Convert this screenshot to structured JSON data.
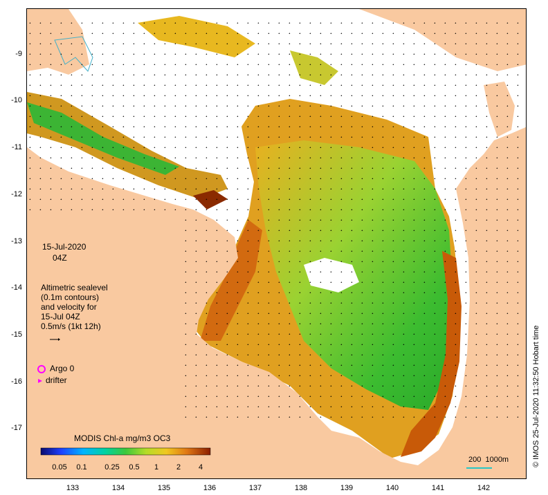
{
  "date_block": {
    "date": "15-Jul-2020",
    "time": "04Z"
  },
  "legend": {
    "title_lines": [
      "Altimetric sealevel",
      "(0.1m contours)",
      "and velocity for",
      "15-Jul 04Z",
      "0.5m/s (1kt 12h)"
    ],
    "argo_label": "Argo 0",
    "drifter_label": "drifter"
  },
  "colorbar": {
    "title": "MODIS Chl-a mg/m3 OC3",
    "tick_labels": [
      "0.05",
      "0.1",
      "0.25",
      "0.5",
      "1",
      "2",
      "4"
    ]
  },
  "scale_bar_label": "200  1000m",
  "credit": "© IMOS 25-Jul-2020 11:32:50 Hobart time",
  "axes": {
    "lon_labels": [
      "133",
      "134",
      "135",
      "136",
      "137",
      "138",
      "139",
      "140",
      "141",
      "142"
    ],
    "lat_labels": [
      "-9",
      "-10",
      "-11",
      "-12",
      "-13",
      "-14",
      "-15",
      "-16",
      "-17"
    ],
    "lon_range": [
      132.0,
      143.0
    ],
    "lat_range": [
      -18.0,
      -8.0
    ]
  },
  "colors": {
    "land": "#f9c9a0",
    "chl_low": "#1ca81c",
    "chl_mid": "#f0c020",
    "chl_high": "#c24a00",
    "argo_marker": "#ff00ff",
    "drifter_marker": "#ff00ff",
    "scale_bar": "#26c6c6"
  }
}
